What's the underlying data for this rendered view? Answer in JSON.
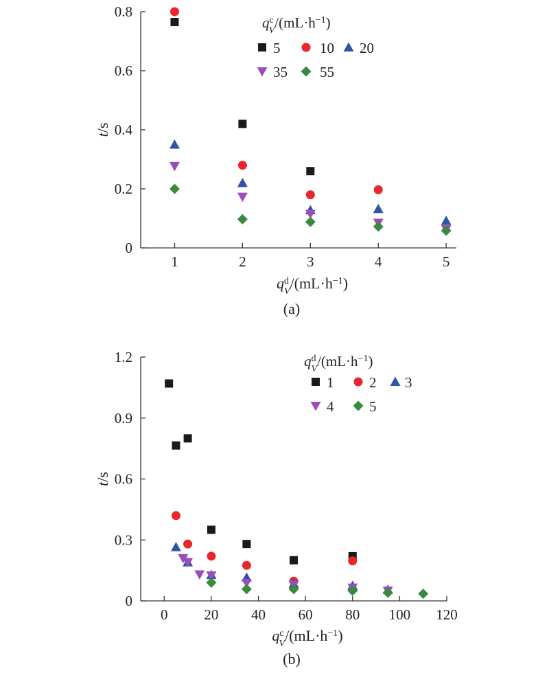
{
  "colors": {
    "s5": "#1a1a1a",
    "s10": "#e8262b",
    "s20": "#2f54a6",
    "s35": "#9b4dbb",
    "s55": "#3a8a3d"
  },
  "chart_data": [
    {
      "type": "scatter",
      "panel_label": "(a)",
      "title": "",
      "xlabel": {
        "base": "q",
        "sub": "V",
        "sup": "d",
        "unit": "/(mL·h",
        "unit_sup": "−1",
        "close": ")"
      },
      "ylabel": {
        "var": "t",
        "unit": "/s"
      },
      "xlim": [
        0.5,
        5.15
      ],
      "ylim": [
        0,
        0.8
      ],
      "xticks": [
        1,
        2,
        3,
        4,
        5
      ],
      "yticks": [
        0,
        0.2,
        0.4,
        0.6,
        0.8
      ],
      "xtick_labels": [
        "1",
        "2",
        "3",
        "4",
        "5"
      ],
      "ytick_labels": [
        "0",
        "0.2",
        "0.4",
        "0.6",
        "0.8"
      ],
      "legend": {
        "title": {
          "base": "q",
          "sub": "V",
          "sup": "c",
          "unit": "/(mL·h",
          "unit_sup": "−1",
          "close": ")"
        },
        "placement": "top-right"
      },
      "grid": false,
      "series": [
        {
          "name": "5",
          "marker": "square",
          "color": "#1a1a1a",
          "x": [
            1,
            2,
            3
          ],
          "y": [
            0.765,
            0.42,
            0.26
          ]
        },
        {
          "name": "10",
          "marker": "circle",
          "color": "#e8262b",
          "x": [
            1,
            2,
            3,
            4
          ],
          "y": [
            0.8,
            0.28,
            0.18,
            0.197
          ]
        },
        {
          "name": "20",
          "marker": "triangle",
          "color": "#2f54a6",
          "x": [
            1,
            2,
            3,
            4,
            5
          ],
          "y": [
            0.35,
            0.22,
            0.128,
            0.132,
            0.092
          ]
        },
        {
          "name": "35",
          "marker": "tri-down",
          "color": "#9b4dbb",
          "x": [
            1,
            2,
            3,
            4,
            5
          ],
          "y": [
            0.277,
            0.173,
            0.115,
            0.085,
            0.063
          ]
        },
        {
          "name": "55",
          "marker": "diamond",
          "color": "#3a8a3d",
          "x": [
            1,
            2,
            3,
            4,
            5
          ],
          "y": [
            0.2,
            0.097,
            0.088,
            0.072,
            0.058
          ]
        }
      ]
    },
    {
      "type": "scatter",
      "panel_label": "(b)",
      "title": "",
      "xlabel": {
        "base": "q",
        "sub": "V",
        "sup": "c",
        "unit": "/(mL·h",
        "unit_sup": "−1",
        "close": ")"
      },
      "ylabel": {
        "var": "t",
        "unit": "/s"
      },
      "xlim": [
        -10,
        120
      ],
      "ylim": [
        0,
        1.2
      ],
      "xticks": [
        0,
        20,
        40,
        60,
        80,
        100,
        120
      ],
      "yticks": [
        0,
        0.3,
        0.6,
        0.9,
        1.2
      ],
      "xtick_labels": [
        "0",
        "20",
        "40",
        "60",
        "80",
        "100",
        "120"
      ],
      "ytick_labels": [
        "0",
        "0.3",
        "0.6",
        "0.9",
        "1.2"
      ],
      "legend": {
        "title": {
          "base": "q",
          "sub": "V",
          "sup": "d",
          "unit": "/(mL·h",
          "unit_sup": "−1",
          "close": ")"
        },
        "placement": "top-right"
      },
      "grid": false,
      "series": [
        {
          "name": "1",
          "marker": "square",
          "color": "#1a1a1a",
          "x": [
            2,
            5,
            10,
            20,
            35,
            55,
            80
          ],
          "y": [
            1.07,
            0.765,
            0.8,
            0.35,
            0.28,
            0.2,
            0.22
          ]
        },
        {
          "name": "2",
          "marker": "circle",
          "color": "#e8262b",
          "x": [
            5,
            10,
            20,
            35,
            55,
            80
          ],
          "y": [
            0.42,
            0.28,
            0.22,
            0.175,
            0.097,
            0.197
          ]
        },
        {
          "name": "3",
          "marker": "triangle",
          "color": "#2f54a6",
          "x": [
            5,
            10,
            20,
            35,
            55,
            80,
            95
          ],
          "y": [
            0.265,
            0.19,
            0.128,
            0.115,
            0.085,
            0.075,
            0.055
          ]
        },
        {
          "name": "4",
          "marker": "tri-down",
          "color": "#9b4dbb",
          "x": [
            8,
            10,
            15,
            20,
            35,
            55,
            80,
            95
          ],
          "y": [
            0.21,
            0.19,
            0.13,
            0.125,
            0.088,
            0.08,
            0.065,
            0.05
          ]
        },
        {
          "name": "5",
          "marker": "diamond",
          "color": "#3a8a3d",
          "x": [
            20,
            35,
            55,
            80,
            95,
            110
          ],
          "y": [
            0.09,
            0.058,
            0.058,
            0.05,
            0.04,
            0.035
          ]
        }
      ]
    }
  ]
}
